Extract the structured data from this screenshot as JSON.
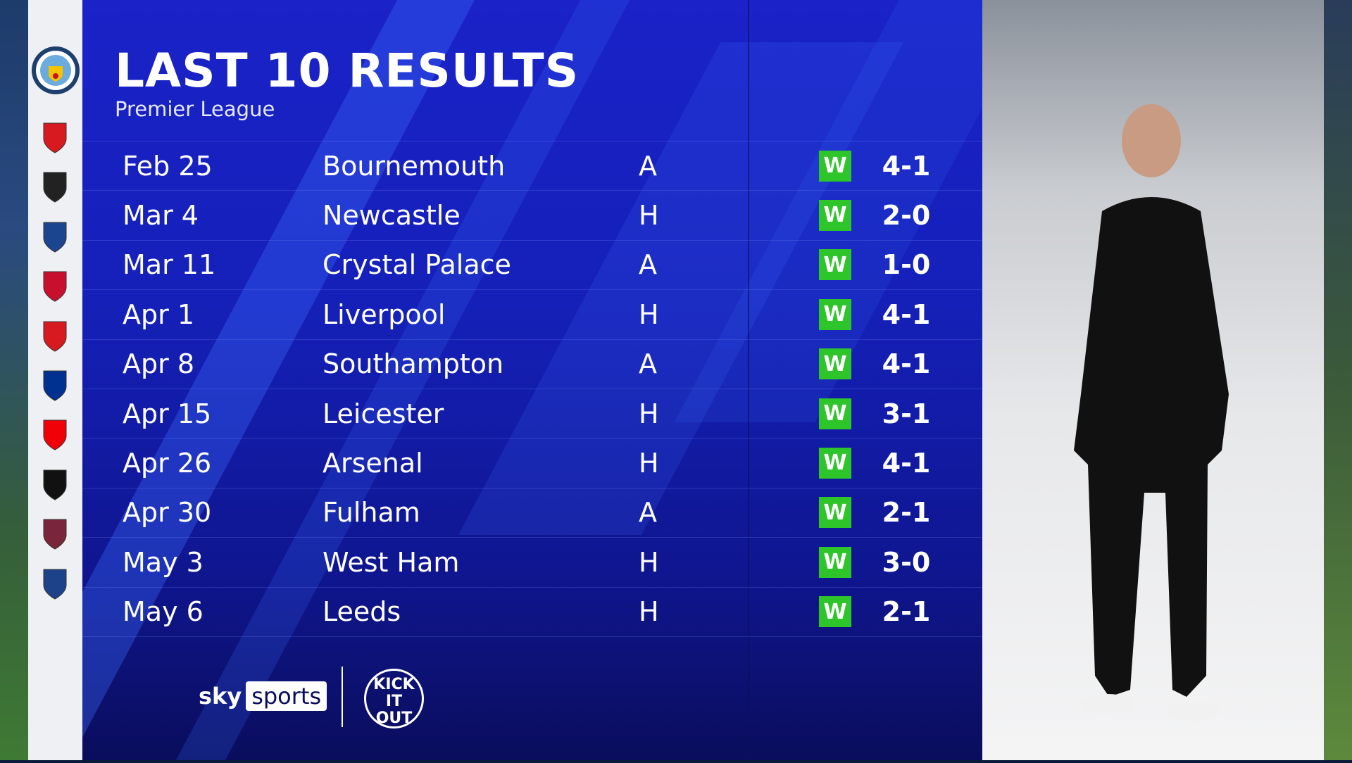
{
  "header": {
    "title": "LAST 10 RESULTS",
    "subtitle": "Premier League",
    "team_crest": "manchester-city-crest"
  },
  "colors": {
    "panel": "#1520b8",
    "win": "#2ec52a"
  },
  "results": [
    {
      "date": "Feb 25",
      "opponent": "Bournemouth",
      "venue": "A",
      "result": "W",
      "score": "4-1",
      "crest": "bournemouth-crest",
      "crest_color": "#d71920"
    },
    {
      "date": "Mar 4",
      "opponent": "Newcastle",
      "venue": "H",
      "result": "W",
      "score": "2-0",
      "crest": "newcastle-crest",
      "crest_color": "#222222"
    },
    {
      "date": "Mar 11",
      "opponent": "Crystal Palace",
      "venue": "A",
      "result": "W",
      "score": "1-0",
      "crest": "crystal-palace-crest",
      "crest_color": "#1b458f"
    },
    {
      "date": "Apr 1",
      "opponent": "Liverpool",
      "venue": "H",
      "result": "W",
      "score": "4-1",
      "crest": "liverpool-crest",
      "crest_color": "#c8102e"
    },
    {
      "date": "Apr 8",
      "opponent": "Southampton",
      "venue": "A",
      "result": "W",
      "score": "4-1",
      "crest": "southampton-crest",
      "crest_color": "#d71920"
    },
    {
      "date": "Apr 15",
      "opponent": "Leicester",
      "venue": "H",
      "result": "W",
      "score": "3-1",
      "crest": "leicester-crest",
      "crest_color": "#003090"
    },
    {
      "date": "Apr 26",
      "opponent": "Arsenal",
      "venue": "H",
      "result": "W",
      "score": "4-1",
      "crest": "arsenal-crest",
      "crest_color": "#ef0107"
    },
    {
      "date": "Apr 30",
      "opponent": "Fulham",
      "venue": "A",
      "result": "W",
      "score": "2-1",
      "crest": "fulham-crest",
      "crest_color": "#111111"
    },
    {
      "date": "May 3",
      "opponent": "West Ham",
      "venue": "H",
      "result": "W",
      "score": "3-0",
      "crest": "west-ham-crest",
      "crest_color": "#7a263a"
    },
    {
      "date": "May 6",
      "opponent": "Leeds",
      "venue": "H",
      "result": "W",
      "score": "2-1",
      "crest": "leeds-crest",
      "crest_color": "#1d428a"
    }
  ],
  "footer": {
    "sky": "sky",
    "sports": "sports",
    "kick_it_out": "KICK IT OUT"
  }
}
